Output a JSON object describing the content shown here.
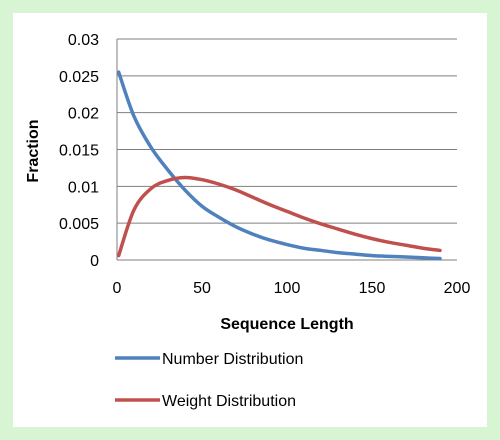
{
  "colors": {
    "background": "#d7f4d3",
    "plot_background": "#ffffff",
    "gridline": "#7f7f7f",
    "number_series": "#4f81bd",
    "weight_series": "#c0504d"
  },
  "chart_data": {
    "type": "line",
    "title": "",
    "xlabel": "Sequence Length",
    "ylabel": "Fraction",
    "xlim": [
      0,
      200
    ],
    "ylim": [
      0,
      0.03
    ],
    "x_ticks": [
      "0",
      "50",
      "100",
      "150",
      "200"
    ],
    "y_ticks": [
      "0",
      "0.005",
      "0.01",
      "0.015",
      "0.02",
      "0.025",
      "0.03"
    ],
    "grid": "horizontal",
    "legend_position": "bottom",
    "x": [
      1,
      10,
      20,
      30,
      40,
      50,
      60,
      70,
      80,
      90,
      100,
      110,
      120,
      130,
      140,
      150,
      160,
      170,
      180,
      190
    ],
    "series": [
      {
        "name": "Number Distribution",
        "color": "#4f81bd",
        "values": [
          0.0255,
          0.0195,
          0.0153,
          0.0122,
          0.0095,
          0.0073,
          0.0058,
          0.0045,
          0.0035,
          0.0027,
          0.0021,
          0.0016,
          0.0013,
          0.001,
          0.0008,
          0.0006,
          0.0005,
          0.0004,
          0.0003,
          0.0002
        ]
      },
      {
        "name": "Weight Distribution",
        "color": "#c0504d",
        "values": [
          0.0006,
          0.0068,
          0.0097,
          0.0108,
          0.0112,
          0.0109,
          0.0103,
          0.0095,
          0.0085,
          0.0075,
          0.0066,
          0.0057,
          0.0049,
          0.0042,
          0.0035,
          0.0029,
          0.0024,
          0.002,
          0.0016,
          0.0013
        ]
      }
    ]
  }
}
